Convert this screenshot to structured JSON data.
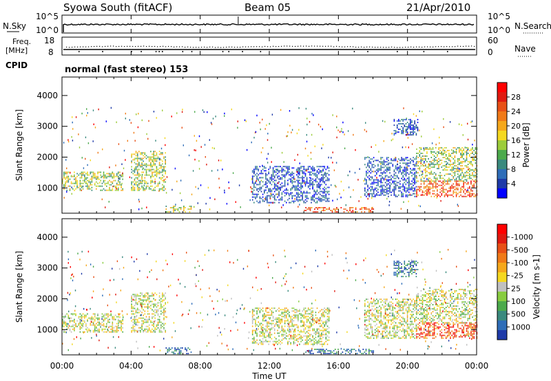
{
  "header": {
    "station": "Syowa South (fitACF)",
    "beam": "Beam 05",
    "date": "21/Apr/2010"
  },
  "noise_panel": {
    "left_label": "N.Sky",
    "right_label": "N.Search",
    "ticks": [
      "10^5",
      "10^0"
    ]
  },
  "freq_panel": {
    "left_label_1": "Freq.",
    "left_label_2": "[MHz]",
    "left_ticks": [
      "18",
      "8"
    ],
    "right_label": "Nave",
    "right_ticks": [
      "60",
      "0"
    ],
    "cpid_label": "CPID",
    "cpid_text": "normal (fast stereo) 153"
  },
  "x_axis": {
    "label": "Time UT",
    "ticks": [
      "00:00",
      "04:00",
      "08:00",
      "12:00",
      "16:00",
      "20:00",
      "00:00"
    ]
  },
  "chart_data": [
    {
      "type": "heatmap",
      "title": "Power",
      "xlabel": "Time UT",
      "ylabel": "Slant Range [km]",
      "y_ticks": [
        "1000",
        "2000",
        "3000",
        "4000"
      ],
      "xlim": [
        0,
        24
      ],
      "ylim": [
        180,
        4600
      ],
      "colorbar": {
        "label": "Power [dB]",
        "ticks": [
          "4",
          "8",
          "12",
          "16",
          "20",
          "24",
          "28"
        ],
        "colors": [
          "#0000ff",
          "#1e3aa8",
          "#2e6db8",
          "#3a8a7e",
          "#4caa4c",
          "#9ccc3a",
          "#f4d820",
          "#f5a81c",
          "#f07a18",
          "#e85016",
          "#e01a10",
          "#ff0000"
        ]
      },
      "regions": [
        {
          "t": [
            0.0,
            3.5
          ],
          "r": [
            900,
            1500
          ],
          "level": "mid"
        },
        {
          "t": [
            4.0,
            6.0
          ],
          "r": [
            900,
            2200
          ],
          "level": "mid"
        },
        {
          "t": [
            6.0,
            7.5
          ],
          "r": [
            200,
            400
          ],
          "level": "mid"
        },
        {
          "t": [
            11.0,
            15.5
          ],
          "r": [
            500,
            1700
          ],
          "level": "low"
        },
        {
          "t": [
            14.0,
            18.0
          ],
          "r": [
            200,
            350
          ],
          "level": "high"
        },
        {
          "t": [
            17.5,
            20.5
          ],
          "r": [
            700,
            2000
          ],
          "level": "low"
        },
        {
          "t": [
            19.2,
            20.6
          ],
          "r": [
            2700,
            3200
          ],
          "level": "low"
        },
        {
          "t": [
            20.5,
            24.0
          ],
          "r": [
            700,
            1200
          ],
          "level": "high"
        },
        {
          "t": [
            20.5,
            24.0
          ],
          "r": [
            1200,
            2300
          ],
          "level": "mid"
        }
      ]
    },
    {
      "type": "heatmap",
      "title": "Velocity",
      "xlabel": "Time UT",
      "ylabel": "Slant Range [km]",
      "y_ticks": [
        "1000",
        "2000",
        "3000",
        "4000"
      ],
      "xlim": [
        0,
        24
      ],
      "ylim": [
        180,
        4600
      ],
      "colorbar": {
        "label": "Velocity [m s-1]",
        "ticks": [
          "1000",
          "500",
          "100",
          "25",
          "-25",
          "-100",
          "-500",
          "-1000"
        ],
        "colors": [
          "#1e3aa8",
          "#2e6db8",
          "#3a8a7e",
          "#4caa4c",
          "#88cc40",
          "#c0c0c0",
          "#f4d820",
          "#f5a81c",
          "#f07a18",
          "#e85016",
          "#e01a10",
          "#ff0000"
        ]
      },
      "regions": [
        {
          "t": [
            0.0,
            3.5
          ],
          "r": [
            900,
            1500
          ],
          "level": "mid"
        },
        {
          "t": [
            4.0,
            6.0
          ],
          "r": [
            900,
            2200
          ],
          "level": "mid"
        },
        {
          "t": [
            6.0,
            7.5
          ],
          "r": [
            200,
            400
          ],
          "level": "low"
        },
        {
          "t": [
            11.0,
            15.5
          ],
          "r": [
            500,
            1700
          ],
          "level": "mid"
        },
        {
          "t": [
            14.0,
            18.0
          ],
          "r": [
            200,
            350
          ],
          "level": "low"
        },
        {
          "t": [
            17.5,
            20.5
          ],
          "r": [
            700,
            2000
          ],
          "level": "mid"
        },
        {
          "t": [
            19.2,
            20.6
          ],
          "r": [
            2700,
            3200
          ],
          "level": "low"
        },
        {
          "t": [
            20.5,
            24.0
          ],
          "r": [
            700,
            1200
          ],
          "level": "high"
        },
        {
          "t": [
            20.5,
            24.0
          ],
          "r": [
            1200,
            2300
          ],
          "level": "mid"
        }
      ]
    }
  ]
}
